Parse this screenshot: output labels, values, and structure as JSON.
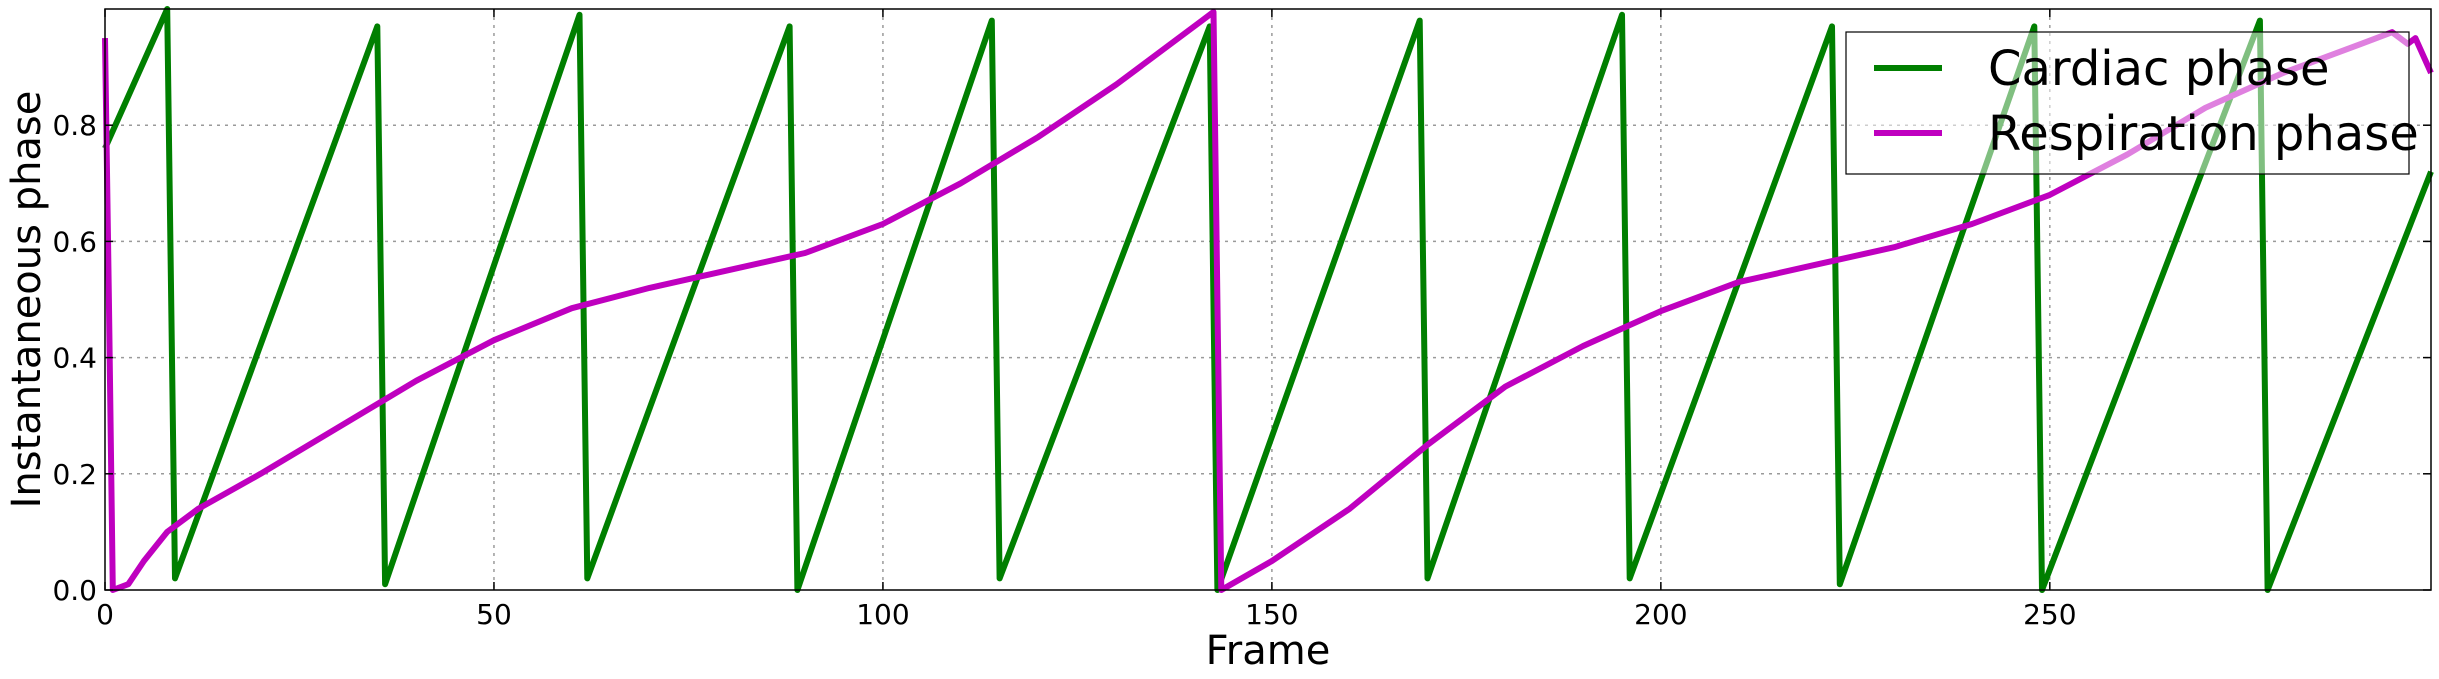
{
  "chart_data": {
    "type": "line",
    "title": "",
    "xlabel": "Frame",
    "ylabel": "Instantaneous phase",
    "xlim": [
      0,
      299
    ],
    "ylim": [
      0,
      1
    ],
    "xticks": [
      0,
      50,
      100,
      150,
      200,
      250
    ],
    "yticks": [
      0.0,
      0.2,
      0.4,
      0.6,
      0.8
    ],
    "ytick_labels": [
      "0.0",
      "0.2",
      "0.4",
      "0.6",
      "0.8"
    ],
    "grid": true,
    "legend_position": "top-right",
    "series": [
      {
        "name": "Cardiac phase",
        "color": "#007f00",
        "points": [
          [
            0,
            0.76
          ],
          [
            8,
            1.0
          ],
          [
            9,
            0.02
          ],
          [
            35,
            0.97
          ],
          [
            36,
            0.01
          ],
          [
            61,
            0.99
          ],
          [
            62,
            0.02
          ],
          [
            88,
            0.97
          ],
          [
            89,
            0.0
          ],
          [
            114,
            0.98
          ],
          [
            115,
            0.02
          ],
          [
            142,
            0.97
          ],
          [
            143,
            0.0
          ],
          [
            169,
            0.98
          ],
          [
            170,
            0.02
          ],
          [
            195,
            0.99
          ],
          [
            196,
            0.02
          ],
          [
            222,
            0.97
          ],
          [
            223,
            0.01
          ],
          [
            248,
            0.97
          ],
          [
            249,
            0.0
          ],
          [
            277,
            0.98
          ],
          [
            278,
            0.0
          ],
          [
            299,
            0.72
          ]
        ]
      },
      {
        "name": "Respiration phase",
        "color": "#bf00bf",
        "points": [
          [
            0,
            0.95
          ],
          [
            0.5,
            0.5
          ],
          [
            1,
            0.0
          ],
          [
            3,
            0.01
          ],
          [
            5,
            0.05
          ],
          [
            8,
            0.1
          ],
          [
            12,
            0.14
          ],
          [
            20,
            0.2
          ],
          [
            30,
            0.28
          ],
          [
            40,
            0.36
          ],
          [
            50,
            0.43
          ],
          [
            60,
            0.485
          ],
          [
            70,
            0.52
          ],
          [
            80,
            0.55
          ],
          [
            90,
            0.58
          ],
          [
            100,
            0.63
          ],
          [
            110,
            0.7
          ],
          [
            120,
            0.78
          ],
          [
            130,
            0.87
          ],
          [
            141,
            0.98
          ],
          [
            142.5,
            0.995
          ],
          [
            143.5,
            0.0
          ],
          [
            150,
            0.05
          ],
          [
            160,
            0.14
          ],
          [
            170,
            0.25
          ],
          [
            180,
            0.35
          ],
          [
            190,
            0.42
          ],
          [
            200,
            0.48
          ],
          [
            210,
            0.53
          ],
          [
            220,
            0.56
          ],
          [
            230,
            0.59
          ],
          [
            240,
            0.63
          ],
          [
            250,
            0.68
          ],
          [
            260,
            0.75
          ],
          [
            270,
            0.83
          ],
          [
            280,
            0.89
          ],
          [
            290,
            0.94
          ],
          [
            294,
            0.96
          ],
          [
            296,
            0.94
          ],
          [
            297,
            0.95
          ],
          [
            299,
            0.89
          ]
        ]
      }
    ]
  }
}
